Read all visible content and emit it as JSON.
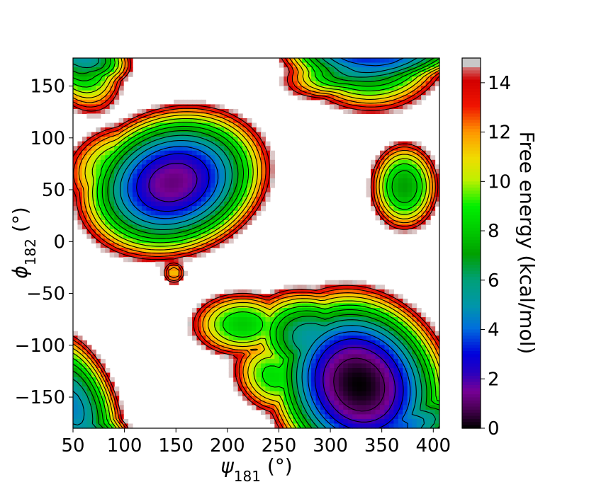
{
  "chart_data": {
    "type": "heatmap",
    "title": "",
    "xlabel": "ψ181 (°)",
    "ylabel": "ϕ182 (°)",
    "xlabel_parts": {
      "symbol": "ψ",
      "subscript": "181",
      "unit": " (°)"
    },
    "ylabel_parts": {
      "symbol": "ϕ",
      "subscript": "182",
      "unit": " (°)"
    },
    "xlim": [
      50,
      406
    ],
    "ylim": [
      -180,
      177
    ],
    "xticks": [
      50,
      100,
      150,
      200,
      250,
      300,
      350,
      400
    ],
    "yticks": [
      -150,
      -100,
      -50,
      0,
      50,
      100,
      150
    ],
    "ytick_labels": [
      "−150",
      "−100",
      "−50",
      "0",
      "50",
      "100",
      "150"
    ],
    "colorbar": {
      "label": "Free energy (kcal/mol)",
      "range": [
        0,
        15
      ],
      "ticks": [
        0,
        2,
        4,
        6,
        8,
        10,
        12,
        14
      ],
      "cap_over_max": "#c8c8c8"
    },
    "colormap": "nipy_spectral",
    "contour_levels": [
      1,
      2,
      3,
      4,
      5,
      6,
      7,
      8,
      9,
      10,
      11,
      12,
      13,
      14
    ],
    "minima": [
      {
        "x": 328,
        "y": -138,
        "energy": 0.0
      },
      {
        "x": 147,
        "y": 57,
        "energy": 1.2
      },
      {
        "x": 372,
        "y": 53,
        "energy": 7.0
      },
      {
        "x": 148,
        "y": -30,
        "energy": 11.0
      },
      {
        "x": 355,
        "y": 178,
        "energy": 3.5
      },
      {
        "x": 50,
        "y": -160,
        "energy": 4.5
      }
    ],
    "grid": false,
    "legend": "none"
  }
}
